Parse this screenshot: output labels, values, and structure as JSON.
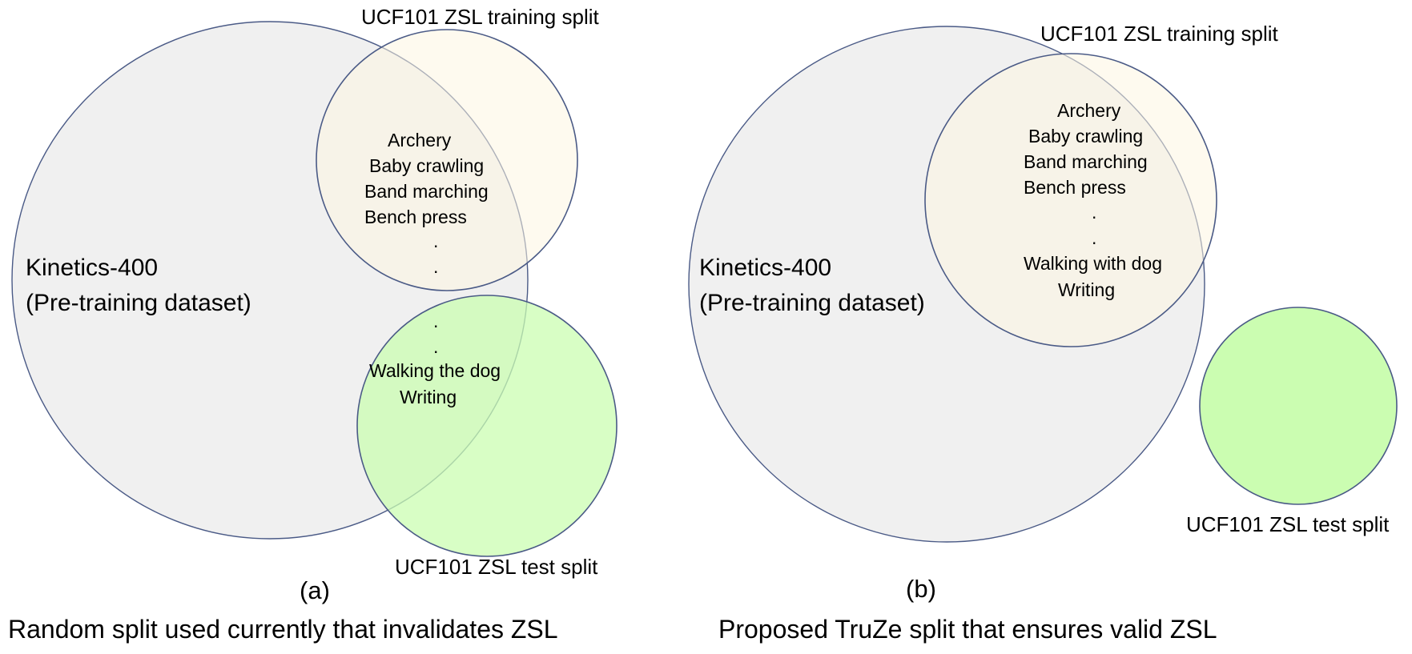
{
  "colors": {
    "kinetics_fill": "#eeeeee",
    "train_fill": "#fdf6e1",
    "test_fill": "#cbfdb1",
    "circle_stroke": "#4a5a86"
  },
  "panel_a": {
    "kinetics_label_line1": "Kinetics-400",
    "kinetics_label_line2": "(Pre-training dataset)",
    "train_label": "UCF101 ZSL training split",
    "test_label": "UCF101 ZSL test split",
    "classes_top": [
      "Archery",
      "Baby crawling",
      "Band marching",
      "Bench press"
    ],
    "dot": ".",
    "classes_bottom": [
      "Walking the dog",
      "Writing"
    ],
    "panel_label": "(a)",
    "caption": "Random split used currently that invalidates ZSL"
  },
  "panel_b": {
    "kinetics_label_line1": "Kinetics-400",
    "kinetics_label_line2": "(Pre-training dataset)",
    "train_label": "UCF101 ZSL training split",
    "test_label": "UCF101 ZSL test split",
    "classes": [
      "Archery",
      "Baby crawling",
      "Band marching",
      "Bench press"
    ],
    "dot": ".",
    "classes_end": [
      "Walking with dog",
      "Writing"
    ],
    "panel_label": "(b)",
    "caption": "Proposed TruZe split that ensures valid ZSL"
  }
}
